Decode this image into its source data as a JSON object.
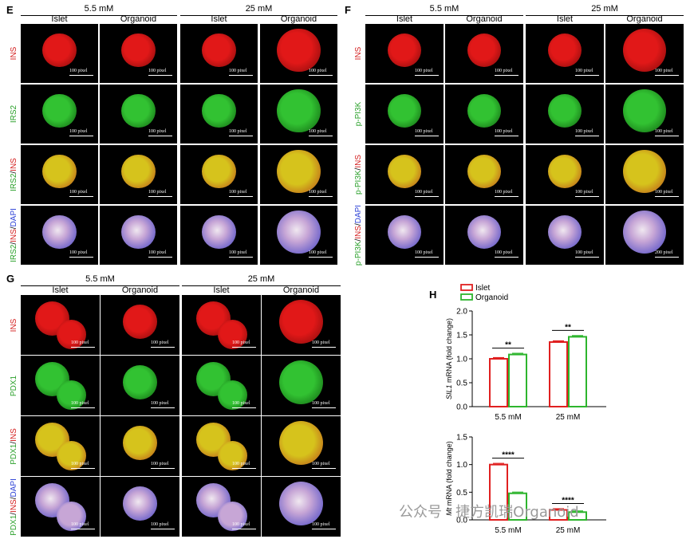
{
  "panels": {
    "E": {
      "letter": "E",
      "conditions": [
        "5.5 mM",
        "25 mM"
      ],
      "columns": [
        "Islet",
        "Organoid",
        "Islet",
        "Organoid"
      ],
      "rows": [
        {
          "label_parts": [
            {
              "text": "INS",
              "color": "#d42020"
            }
          ]
        },
        {
          "label_parts": [
            {
              "text": "IRS2",
              "color": "#2aa02a"
            }
          ]
        },
        {
          "label_parts": [
            {
              "text": "IRS2",
              "color": "#2aa02a"
            },
            {
              "text": "/",
              "color": "#000000"
            },
            {
              "text": "INS",
              "color": "#d42020"
            }
          ]
        },
        {
          "label_parts": [
            {
              "text": "IRS2",
              "color": "#2aa02a"
            },
            {
              "text": "/",
              "color": "#000000"
            },
            {
              "text": "INS",
              "color": "#d42020"
            },
            {
              "text": "/",
              "color": "#000000"
            },
            {
              "text": "DAPI",
              "color": "#2a3fd6"
            }
          ]
        }
      ],
      "scale_bar": "100 pixel"
    },
    "F": {
      "letter": "F",
      "conditions": [
        "5.5 mM",
        "25 mM"
      ],
      "columns": [
        "Islet",
        "Organoid",
        "Islet",
        "Organoid"
      ],
      "rows": [
        {
          "label_parts": [
            {
              "text": "INS",
              "color": "#d42020"
            }
          ]
        },
        {
          "label_parts": [
            {
              "text": "p-PI3K",
              "color": "#2aa02a"
            }
          ]
        },
        {
          "label_parts": [
            {
              "text": "p-PI3K",
              "color": "#2aa02a"
            },
            {
              "text": "/",
              "color": "#000000"
            },
            {
              "text": "INS",
              "color": "#d42020"
            }
          ]
        },
        {
          "label_parts": [
            {
              "text": "p-PI3K",
              "color": "#2aa02a"
            },
            {
              "text": "/",
              "color": "#000000"
            },
            {
              "text": "INS",
              "color": "#d42020"
            },
            {
              "text": "/",
              "color": "#000000"
            },
            {
              "text": "DAPI",
              "color": "#2a3fd6"
            }
          ]
        }
      ],
      "scale_bar": "100 pixel",
      "scale_bar_alt": "200 pixel"
    },
    "G": {
      "letter": "G",
      "conditions": [
        "5.5 mM",
        "25 mM"
      ],
      "columns": [
        "Islet",
        "Organoid",
        "Islet",
        "Organoid"
      ],
      "rows": [
        {
          "label_parts": [
            {
              "text": "INS",
              "color": "#d42020"
            }
          ]
        },
        {
          "label_parts": [
            {
              "text": "PDX1",
              "color": "#2aa02a"
            }
          ]
        },
        {
          "label_parts": [
            {
              "text": "PDX1",
              "color": "#2aa02a"
            },
            {
              "text": "/",
              "color": "#000000"
            },
            {
              "text": "INS",
              "color": "#d42020"
            }
          ]
        },
        {
          "label_parts": [
            {
              "text": "PDX1",
              "color": "#2aa02a"
            },
            {
              "text": "/",
              "color": "#000000"
            },
            {
              "text": "INS",
              "color": "#d42020"
            },
            {
              "text": "/",
              "color": "#000000"
            },
            {
              "text": "DAPI",
              "color": "#2a3fd6"
            }
          ]
        }
      ],
      "scale_bar": "100 pixel"
    },
    "H": {
      "letter": "H",
      "legend": [
        {
          "name": "Islet",
          "color": "#e02020"
        },
        {
          "name": "Organoid",
          "color": "#2db52d"
        }
      ]
    }
  },
  "chart_data": [
    {
      "type": "bar",
      "categories": [
        "5.5 mM",
        "25 mM"
      ],
      "series": [
        {
          "name": "Islet",
          "values": [
            1.0,
            1.35
          ]
        },
        {
          "name": "Organoid",
          "values": [
            1.09,
            1.46
          ]
        }
      ],
      "ylabel_italic": "SIL1",
      "ylabel_rest": " mRNA (fold change)",
      "ylim": [
        0,
        2.0
      ],
      "yticks": [
        "0.0",
        "0.5",
        "1.0",
        "1.5",
        "2.0"
      ],
      "significance": [
        "**",
        "**"
      ]
    },
    {
      "type": "bar",
      "categories": [
        "5.5 mM",
        "25 mM"
      ],
      "series": [
        {
          "name": "Islet",
          "values": [
            1.0,
            0.18
          ]
        },
        {
          "name": "Organoid",
          "values": [
            0.48,
            0.14
          ]
        }
      ],
      "ylabel_italic": "Mt",
      "ylabel_rest": " mRNA (fold change)",
      "ylim": [
        0,
        1.5
      ],
      "yticks": [
        "0.0",
        "0.5",
        "1.0",
        "1.5"
      ],
      "significance": [
        "****",
        "****"
      ]
    }
  ],
  "watermark": "公众号 · 捷方凯瑞Organoid"
}
